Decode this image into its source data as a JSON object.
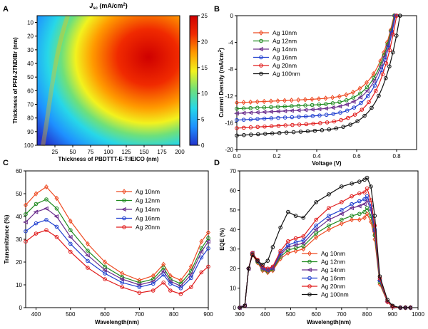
{
  "chart_data": [
    {
      "id": "A",
      "type": "heatmap",
      "panel_label": "A",
      "title": "J",
      "title_sub": "sc",
      "title_unit": " (mA/cm",
      "title_sup": "2",
      "title_close": ")",
      "xlabel": "Thickness of PBDTTT-E-T:IEICO (nm)",
      "ylabel": "Thickness of PFN-2TNDIBr (nm)",
      "xlim": [
        0,
        200
      ],
      "ylim": [
        5,
        100
      ],
      "xticks": [
        "25",
        "50",
        "75",
        "100",
        "125",
        "150",
        "175",
        "200"
      ],
      "yticks": [
        "10",
        "20",
        "30",
        "40",
        "50",
        "60",
        "70",
        "80",
        "90",
        "100"
      ],
      "colorbar_ticks": [
        "0",
        "5",
        "10",
        "15",
        "20",
        "25"
      ],
      "colorbar_range": [
        0,
        25
      ],
      "colormap": [
        "#2233cc",
        "#1e90ff",
        "#27d7e8",
        "#6fe07a",
        "#f2f21e",
        "#ff9a00",
        "#f02a00",
        "#cf0000"
      ],
      "max_value": 23.5
    },
    {
      "id": "B",
      "type": "line",
      "panel_label": "B",
      "xlabel": "Voltage (V)",
      "ylabel": "Current Density (mA/cm",
      "ylabel_sup": "2",
      "ylabel_close": ")",
      "xlim": [
        0.0,
        0.9
      ],
      "ylim": [
        -20,
        0
      ],
      "xticks": [
        "0.0",
        "0.2",
        "0.4",
        "0.6",
        "0.8"
      ],
      "yticks": [
        "0",
        "-4",
        "-8",
        "-12",
        "-16",
        "-20"
      ],
      "legend_position": "top-left",
      "series": [
        {
          "name": "Ag 10nm",
          "color": "#ee4a22",
          "marker": "diamond",
          "jsc": -13.0,
          "voc": 0.787,
          "j_at_0_4": -12.2,
          "j_at_0_6": -11.0,
          "j_at_0_7": -8.6
        },
        {
          "name": "Ag 12nm",
          "color": "#1f8a1f",
          "marker": "circle",
          "jsc": -13.9,
          "voc": 0.789,
          "j_at_0_4": -13.1,
          "j_at_0_6": -11.9,
          "j_at_0_7": -9.4
        },
        {
          "name": "Ag 14nm",
          "color": "#6a2d8c",
          "marker": "triangle-left",
          "jsc": -14.6,
          "voc": 0.791,
          "j_at_0_4": -13.8,
          "j_at_0_6": -12.6,
          "j_at_0_7": -10.0
        },
        {
          "name": "Ag 16nm",
          "color": "#1f3fcf",
          "marker": "circle",
          "jsc": -15.6,
          "voc": 0.794,
          "j_at_0_4": -14.8,
          "j_at_0_6": -13.6,
          "j_at_0_7": -10.9
        },
        {
          "name": "Ag 20nm",
          "color": "#e01b1b",
          "marker": "circle",
          "jsc": -16.8,
          "voc": 0.8,
          "j_at_0_4": -16.0,
          "j_at_0_6": -14.8,
          "j_at_0_7": -12.0
        },
        {
          "name": "Ag 100nm",
          "color": "#111111",
          "marker": "circle",
          "jsc": -17.9,
          "voc": 0.817,
          "j_at_0_4": -17.1,
          "j_at_0_6": -15.9,
          "j_at_0_7": -13.2
        }
      ]
    },
    {
      "id": "C",
      "type": "line",
      "panel_label": "C",
      "xlabel": "Wavelength(nm)",
      "ylabel": "Transmittance (%)",
      "xlim": [
        370,
        900
      ],
      "ylim": [
        0,
        60
      ],
      "xticks": [
        "400",
        "500",
        "600",
        "700",
        "800",
        "900"
      ],
      "yticks": [
        "0",
        "10",
        "20",
        "30",
        "40",
        "50",
        "60"
      ],
      "legend_position": "top-right",
      "x": [
        370,
        400,
        430,
        460,
        500,
        550,
        600,
        650,
        700,
        740,
        770,
        790,
        820,
        850,
        880,
        900
      ],
      "series": [
        {
          "name": "Ag 10nm",
          "color": "#ee4a22",
          "marker": "diamond",
          "values": [
            45,
            50,
            53,
            48,
            38,
            28,
            20,
            15,
            12,
            14,
            19,
            14,
            12,
            18,
            29,
            33
          ]
        },
        {
          "name": "Ag 12nm",
          "color": "#1f8a1f",
          "marker": "circle",
          "values": [
            41,
            45.5,
            47.5,
            43.5,
            34,
            25,
            18,
            13.5,
            11,
            12.5,
            17.5,
            12.5,
            10.5,
            16,
            26,
            30.5
          ]
        },
        {
          "name": "Ag 14nm",
          "color": "#6a2d8c",
          "marker": "triangle-left",
          "values": [
            37.5,
            42,
            43.5,
            40,
            31,
            23,
            16.5,
            12.5,
            10,
            11.5,
            16,
            11.5,
            9.5,
            14.5,
            24.5,
            29
          ]
        },
        {
          "name": "Ag 16nm",
          "color": "#1f3fcf",
          "marker": "circle",
          "values": [
            33.5,
            37,
            38.5,
            35.5,
            28,
            20.5,
            15,
            11,
            9,
            10.5,
            14.5,
            10.5,
            8.5,
            13,
            22,
            26
          ]
        },
        {
          "name": "Ag 20nm",
          "color": "#e01b1b",
          "marker": "circle",
          "values": [
            29,
            32.5,
            34,
            31,
            24.5,
            17.5,
            12.5,
            9,
            6.5,
            7.5,
            11,
            7.5,
            6,
            9,
            15.5,
            18
          ]
        }
      ]
    },
    {
      "id": "D",
      "type": "line",
      "panel_label": "D",
      "xlabel": "Wavelength(nm)",
      "ylabel": "EQE (%)",
      "xlim": [
        300,
        1000
      ],
      "ylim": [
        0,
        70
      ],
      "xticks": [
        "300",
        "400",
        "500",
        "600",
        "700",
        "800",
        "900",
        "1000"
      ],
      "yticks": [
        "0",
        "10",
        "20",
        "30",
        "40",
        "50",
        "60",
        "70"
      ],
      "legend_position": "bottom-center",
      "x": [
        300,
        320,
        335,
        350,
        370,
        390,
        410,
        430,
        460,
        490,
        520,
        550,
        600,
        650,
        700,
        740,
        770,
        790,
        800,
        815,
        830,
        850,
        880,
        900,
        930,
        950,
        970
      ],
      "series": [
        {
          "name": "Ag 10nm",
          "color": "#ee4a22",
          "marker": "diamond",
          "values": [
            0,
            1,
            20,
            27,
            23,
            19,
            18,
            19,
            25,
            28,
            29,
            30,
            36,
            40,
            43,
            45,
            45,
            46,
            48,
            44,
            35,
            12,
            3,
            0.5,
            0,
            0,
            0
          ]
        },
        {
          "name": "Ag 12nm",
          "color": "#1f8a1f",
          "marker": "circle",
          "values": [
            0,
            1,
            20,
            27.5,
            23.5,
            19.5,
            18.5,
            19.5,
            26,
            29.5,
            30.5,
            31.5,
            38,
            42,
            45,
            47,
            48,
            49,
            51,
            47,
            37,
            13,
            3,
            0.5,
            0,
            0,
            0
          ]
        },
        {
          "name": "Ag 14nm",
          "color": "#6a2d8c",
          "marker": "triangle-left",
          "values": [
            0,
            1,
            20,
            28,
            24,
            20,
            19,
            20,
            27,
            31,
            32,
            33,
            40,
            45,
            48,
            51,
            52,
            53,
            55,
            50,
            39,
            14,
            3,
            0.5,
            0,
            0,
            0
          ]
        },
        {
          "name": "Ag 16nm",
          "color": "#1f3fcf",
          "marker": "circle",
          "values": [
            0,
            1,
            20,
            28,
            24,
            20.5,
            19.5,
            20.5,
            28,
            32,
            33.5,
            34.5,
            42,
            47,
            50,
            53,
            54.5,
            55.5,
            57,
            52,
            40,
            14,
            3,
            0.5,
            0,
            0,
            0
          ]
        },
        {
          "name": "Ag 20nm",
          "color": "#e01b1b",
          "marker": "circle",
          "values": [
            0,
            1,
            20,
            28,
            24.5,
            21,
            20,
            21,
            29,
            34,
            35.5,
            36.5,
            45,
            51,
            54,
            57,
            58.5,
            59,
            61,
            55,
            42,
            15,
            3,
            0.5,
            0,
            0,
            0
          ]
        },
        {
          "name": "Ag 100nm",
          "color": "#111111",
          "marker": "circle",
          "values": [
            0,
            1,
            20,
            27,
            24,
            22,
            24,
            31,
            41,
            49,
            47,
            46,
            54,
            58,
            62,
            63.5,
            64.5,
            65.5,
            66.5,
            62,
            47,
            16,
            4,
            1,
            0,
            0,
            0
          ]
        }
      ]
    }
  ]
}
